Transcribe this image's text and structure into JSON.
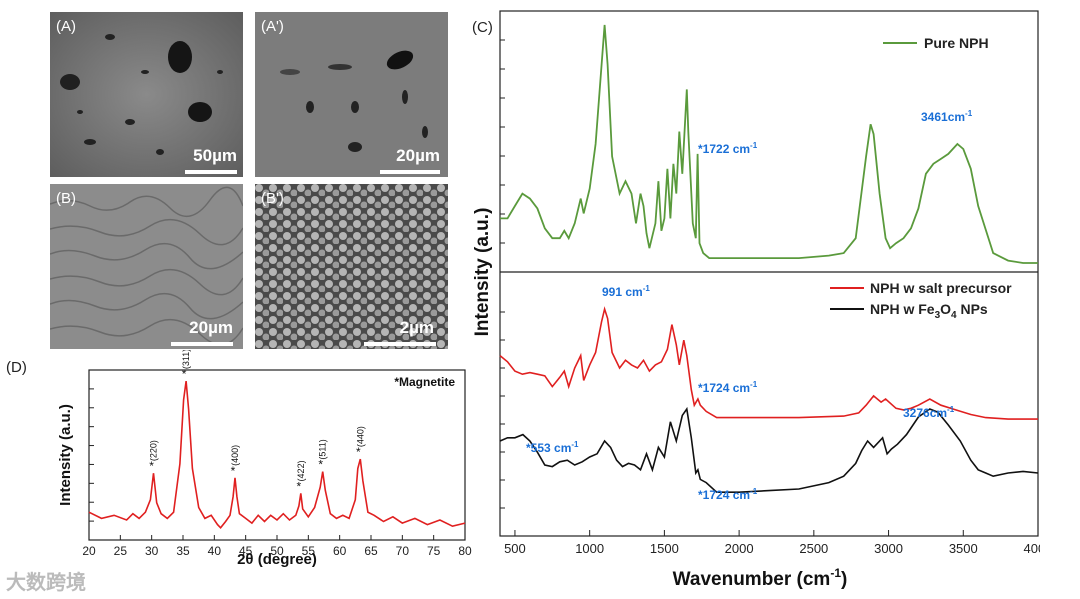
{
  "figure": {
    "watermark": "大数跨境"
  },
  "micrographs": [
    {
      "label": "(A)",
      "scale": "50µm"
    },
    {
      "label": "(A')",
      "scale": "20µm"
    },
    {
      "label": "(B)",
      "scale": "20µm"
    },
    {
      "label": "(B')",
      "scale": "2µm"
    }
  ],
  "chart_data": [
    {
      "type": "line",
      "panel": "(D)",
      "title": "*Magnetite",
      "xlabel": "2θ (degree)",
      "ylabel": "Intensity (a.u.)",
      "xlim": [
        20,
        80
      ],
      "ylim": [
        0,
        1
      ],
      "xticks": [
        20,
        25,
        30,
        35,
        40,
        45,
        50,
        55,
        60,
        65,
        70,
        75,
        80
      ],
      "color": "#e02020",
      "series": [
        {
          "name": "XRD",
          "x": [
            20,
            22,
            24,
            26,
            27,
            28,
            29,
            29.8,
            30.3,
            30.8,
            31.5,
            32.5,
            33.5,
            34.5,
            35.1,
            35.5,
            35.9,
            36.5,
            37.5,
            38.5,
            39.5,
            40.5,
            41,
            41.8,
            42.5,
            43,
            43.3,
            43.6,
            44,
            45,
            46,
            47,
            48,
            49,
            50,
            51,
            52,
            53,
            53.5,
            53.8,
            54.1,
            55,
            56,
            56.9,
            57.3,
            57.7,
            58.5,
            59.5,
            60.5,
            61.5,
            62.5,
            62.9,
            63.3,
            63.7,
            64.5,
            65.5,
            67,
            68.5,
            70,
            72,
            74,
            76,
            78,
            80
          ],
          "values": [
            0.14,
            0.1,
            0.12,
            0.09,
            0.13,
            0.1,
            0.14,
            0.22,
            0.39,
            0.2,
            0.13,
            0.1,
            0.14,
            0.45,
            0.86,
            0.98,
            0.8,
            0.42,
            0.17,
            0.1,
            0.12,
            0.06,
            0.04,
            0.08,
            0.12,
            0.24,
            0.36,
            0.24,
            0.13,
            0.1,
            0.07,
            0.12,
            0.08,
            0.12,
            0.09,
            0.13,
            0.09,
            0.12,
            0.18,
            0.26,
            0.16,
            0.11,
            0.17,
            0.3,
            0.4,
            0.28,
            0.13,
            0.1,
            0.12,
            0.1,
            0.22,
            0.42,
            0.48,
            0.34,
            0.14,
            0.12,
            0.08,
            0.11,
            0.07,
            0.1,
            0.06,
            0.09,
            0.05,
            0.07
          ]
        }
      ],
      "peaks": [
        {
          "x": 30.3,
          "label": "(220)",
          "y": 0.39
        },
        {
          "x": 35.5,
          "label": "(311)",
          "y": 0.98
        },
        {
          "x": 43.3,
          "label": "(400)",
          "y": 0.36
        },
        {
          "x": 53.8,
          "label": "(422)",
          "y": 0.26
        },
        {
          "x": 57.3,
          "label": "(511)",
          "y": 0.4
        },
        {
          "x": 63.3,
          "label": "(440)",
          "y": 0.48
        }
      ]
    },
    {
      "type": "line",
      "panel": "(C)",
      "xlabel": "Wavenumber (cm-1)",
      "xlabel_main": "Wavenumber (cm",
      "xlabel_sup": "-1",
      "xlabel_close": ")",
      "ylabel": "Intensity (a.u.)",
      "xlim": [
        400,
        4000
      ],
      "xticks": [
        500,
        1000,
        1500,
        2000,
        2500,
        3000,
        3500,
        4000
      ],
      "ylim": [
        0,
        1
      ],
      "subplots": [
        {
          "series": [
            {
              "name": "Pure NPH",
              "color": "#5a9a3c",
              "x": [
                400,
                450,
                500,
                550,
                600,
                650,
                700,
                750,
                800,
                830,
                860,
                900,
                940,
                960,
                1000,
                1040,
                1080,
                1100,
                1120,
                1150,
                1200,
                1240,
                1280,
                1310,
                1340,
                1360,
                1380,
                1400,
                1440,
                1460,
                1480,
                1500,
                1520,
                1540,
                1560,
                1580,
                1600,
                1620,
                1650,
                1660,
                1690,
                1710,
                1722,
                1735,
                1760,
                1800,
                2000,
                2200,
                2400,
                2600,
                2700,
                2780,
                2850,
                2880,
                2900,
                2940,
                2980,
                3010,
                3050,
                3100,
                3150,
                3200,
                3250,
                3300,
                3350,
                3400,
                3461,
                3500,
                3550,
                3600,
                3700,
                3800,
                3900,
                4000
              ],
              "values": [
                0.2,
                0.2,
                0.25,
                0.3,
                0.28,
                0.24,
                0.16,
                0.12,
                0.12,
                0.15,
                0.12,
                0.18,
                0.28,
                0.22,
                0.32,
                0.5,
                0.82,
                0.98,
                0.82,
                0.45,
                0.3,
                0.35,
                0.3,
                0.18,
                0.3,
                0.25,
                0.14,
                0.08,
                0.18,
                0.35,
                0.15,
                0.2,
                0.4,
                0.2,
                0.42,
                0.3,
                0.55,
                0.38,
                0.72,
                0.55,
                0.18,
                0.12,
                0.46,
                0.1,
                0.06,
                0.04,
                0.04,
                0.04,
                0.04,
                0.05,
                0.06,
                0.12,
                0.45,
                0.58,
                0.54,
                0.3,
                0.12,
                0.08,
                0.1,
                0.12,
                0.16,
                0.24,
                0.38,
                0.42,
                0.44,
                0.46,
                0.5,
                0.48,
                0.4,
                0.25,
                0.06,
                0.03,
                0.02,
                0.02
              ]
            }
          ],
          "annotations": [
            {
              "x": 1722,
              "y": 0.46,
              "text": "*1722 cm-1"
            },
            {
              "x": 3461,
              "y": 0.5,
              "text": "3461cm-1"
            }
          ]
        },
        {
          "series": [
            {
              "name": "NPH w salt precursor",
              "color": "#e02020",
              "x": [
                400,
                450,
                500,
                550,
                600,
                650,
                700,
                750,
                800,
                830,
                860,
                900,
                940,
                960,
                1000,
                1040,
                1080,
                1100,
                1120,
                1150,
                1200,
                1240,
                1280,
                1320,
                1360,
                1400,
                1440,
                1480,
                1520,
                1550,
                1580,
                1600,
                1630,
                1650,
                1680,
                1700,
                1724,
                1740,
                1780,
                1850,
                2000,
                2400,
                2700,
                2800,
                2850,
                2900,
                2950,
                2980,
                3050,
                3100,
                3150,
                3200,
                3276,
                3350,
                3450,
                3550,
                3650,
                3800,
                4000
              ],
              "values": [
                0.48,
                0.44,
                0.38,
                0.36,
                0.37,
                0.36,
                0.35,
                0.28,
                0.34,
                0.38,
                0.28,
                0.4,
                0.48,
                0.32,
                0.42,
                0.5,
                0.7,
                0.78,
                0.72,
                0.5,
                0.4,
                0.45,
                0.42,
                0.4,
                0.45,
                0.38,
                0.42,
                0.44,
                0.52,
                0.68,
                0.55,
                0.42,
                0.58,
                0.48,
                0.26,
                0.16,
                0.2,
                0.16,
                0.12,
                0.08,
                0.08,
                0.08,
                0.09,
                0.11,
                0.16,
                0.22,
                0.18,
                0.2,
                0.14,
                0.13,
                0.14,
                0.16,
                0.2,
                0.16,
                0.13,
                0.1,
                0.08,
                0.07,
                0.07
              ]
            },
            {
              "name": "NPH w Fe3O4 NPs",
              "color": "#111111",
              "x": [
                400,
                450,
                500,
                553,
                600,
                650,
                700,
                750,
                800,
                850,
                900,
                950,
                1000,
                1050,
                1100,
                1140,
                1180,
                1220,
                1260,
                1300,
                1340,
                1380,
                1420,
                1460,
                1500,
                1540,
                1580,
                1620,
                1650,
                1680,
                1710,
                1724,
                1740,
                1780,
                1850,
                2000,
                2200,
                2400,
                2600,
                2700,
                2780,
                2820,
                2860,
                2900,
                2960,
                2990,
                3020,
                3060,
                3120,
                3200,
                3276,
                3330,
                3400,
                3480,
                3550,
                3600,
                3650,
                3700,
                3800,
                3900,
                4000
              ],
              "values": [
                0.4,
                0.42,
                0.42,
                0.44,
                0.4,
                0.33,
                0.25,
                0.24,
                0.27,
                0.28,
                0.25,
                0.27,
                0.3,
                0.32,
                0.4,
                0.36,
                0.28,
                0.24,
                0.26,
                0.25,
                0.22,
                0.32,
                0.22,
                0.36,
                0.3,
                0.52,
                0.4,
                0.56,
                0.6,
                0.42,
                0.2,
                0.22,
                0.16,
                0.14,
                0.08,
                0.08,
                0.09,
                0.1,
                0.14,
                0.18,
                0.26,
                0.34,
                0.4,
                0.36,
                0.42,
                0.32,
                0.35,
                0.38,
                0.44,
                0.55,
                0.6,
                0.58,
                0.5,
                0.4,
                0.28,
                0.22,
                0.2,
                0.18,
                0.2,
                0.21,
                0.2
              ]
            }
          ],
          "annotations": [
            {
              "x": 991,
              "y": 0.78,
              "text": "991 cm-1"
            },
            {
              "x": 1724,
              "y": 0.2,
              "text": "*1724 cm-1"
            },
            {
              "x": 553,
              "y": 0.44,
              "text": "*553 cm-1"
            },
            {
              "x": 1724,
              "y": 0.22,
              "text": "*1724 cm-1"
            },
            {
              "x": 3276,
              "y": 0.6,
              "text": "3276cm-1"
            }
          ]
        }
      ]
    }
  ],
  "labels": {
    "panel_c": "(C)",
    "panel_d": "(D)",
    "legend_pure": "Pure NPH",
    "legend_salt": "NPH w salt precursor",
    "legend_fe_prefix": "NPH w Fe",
    "legend_fe_sub1": "3",
    "legend_fe_mid": "O",
    "legend_fe_sub2": "4",
    "legend_fe_suffix": " NPs",
    "magnetite": "*Magnetite",
    "xrd_xlabel": "2θ (degree)",
    "xrd_ylabel": "Intensity (a.u.)",
    "ftir_ylabel": "Intensity (a.u.)",
    "ann_1722": "*1722 cm",
    "ann_3461": "3461cm",
    "ann_991": "991 cm",
    "ann_1724a": "*1724 cm",
    "ann_553": "*553 cm",
    "ann_1724b": "*1724 cm",
    "ann_3276": "3276cm",
    "sup_m1": "-1"
  }
}
